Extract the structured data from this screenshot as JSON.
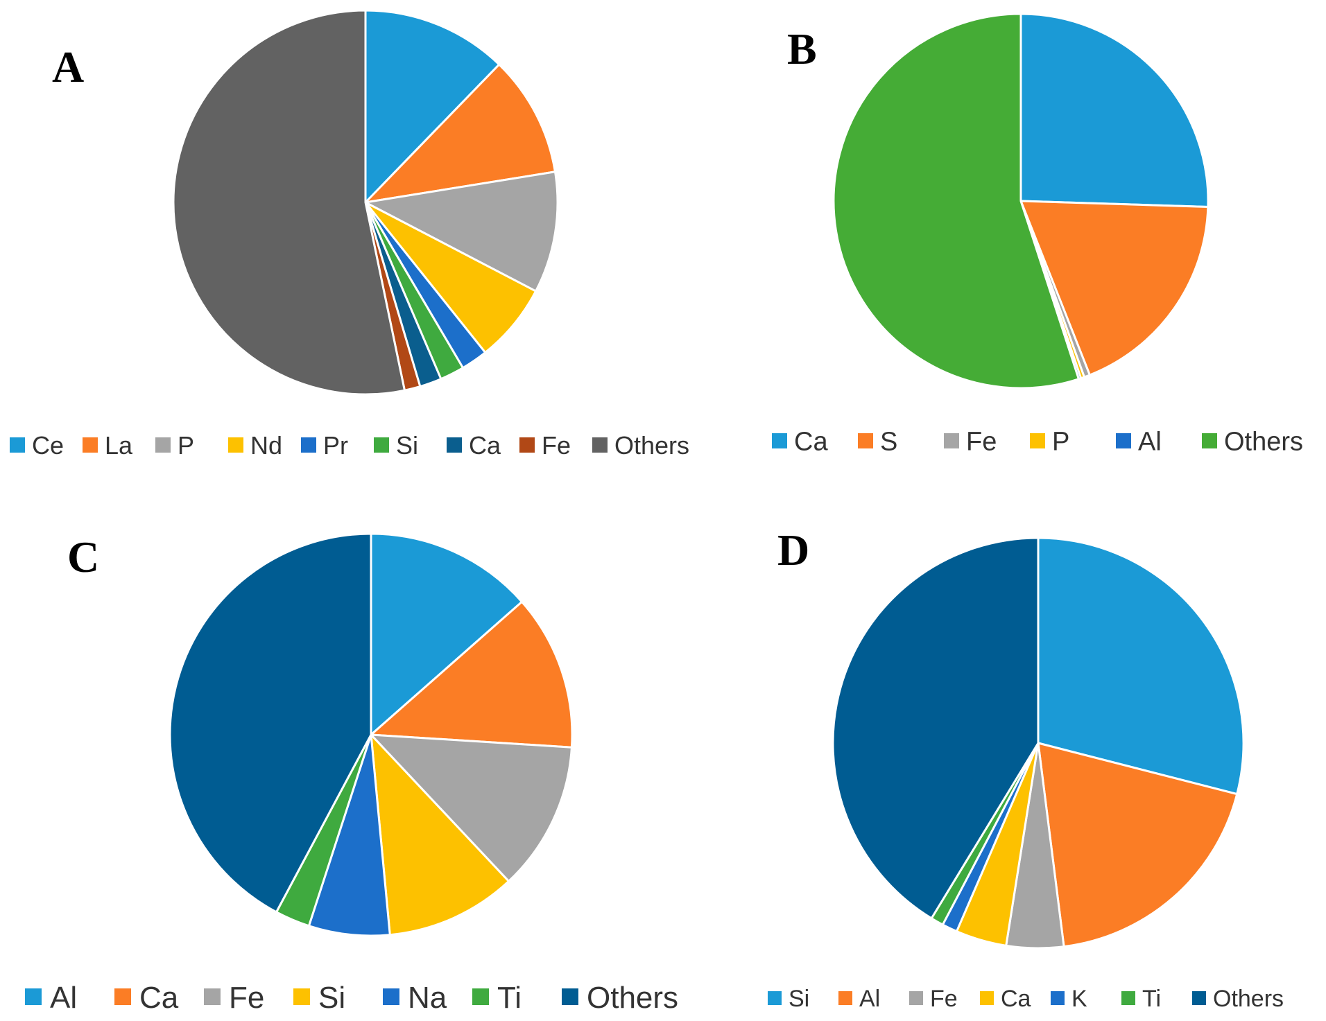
{
  "chart_data": [
    {
      "type": "pie",
      "panel_label": "A",
      "categories": [
        "Ce",
        "La",
        "P",
        "Nd",
        "Pr",
        "Si",
        "Ca",
        "Fe",
        "Others"
      ],
      "values": [
        12.0,
        10.0,
        10.0,
        6.5,
        2.2,
        2.0,
        1.8,
        1.3,
        52.2
      ],
      "colors": [
        "#1b9ad6",
        "#fb7d25",
        "#a5a5a5",
        "#fdc100",
        "#1c6fca",
        "#3faa3f",
        "#0a5e8e",
        "#b14816",
        "#626262"
      ]
    },
    {
      "type": "pie",
      "panel_label": "B",
      "categories": [
        "Ca",
        "S",
        "Fe",
        "P",
        "Al",
        "Others"
      ],
      "values": [
        25.5,
        18.5,
        0.5,
        0.3,
        0.2,
        55.0
      ],
      "colors": [
        "#1b9ad6",
        "#fb7d25",
        "#a5a5a5",
        "#fdc100",
        "#1c6fca",
        "#45ac36"
      ]
    },
    {
      "type": "pie",
      "panel_label": "C",
      "categories": [
        "Al",
        "Ca",
        "Fe",
        "Si",
        "Na",
        "Ti",
        "Others"
      ],
      "values": [
        13.5,
        12.5,
        12.0,
        10.5,
        6.5,
        2.8,
        42.2
      ],
      "colors": [
        "#1b9ad6",
        "#fb7d25",
        "#a5a5a5",
        "#fdc100",
        "#1c6fca",
        "#3faa3f",
        "#005c92"
      ]
    },
    {
      "type": "pie",
      "panel_label": "D",
      "categories": [
        "Si",
        "Al",
        "Fe",
        "Ca",
        "K",
        "Ti",
        "Others"
      ],
      "values": [
        29.0,
        19.0,
        4.5,
        4.0,
        1.2,
        1.0,
        41.3
      ],
      "colors": [
        "#1b9ad6",
        "#fb7d25",
        "#a5a5a5",
        "#fdc100",
        "#1c6fca",
        "#3faa3f",
        "#005c92"
      ]
    }
  ]
}
